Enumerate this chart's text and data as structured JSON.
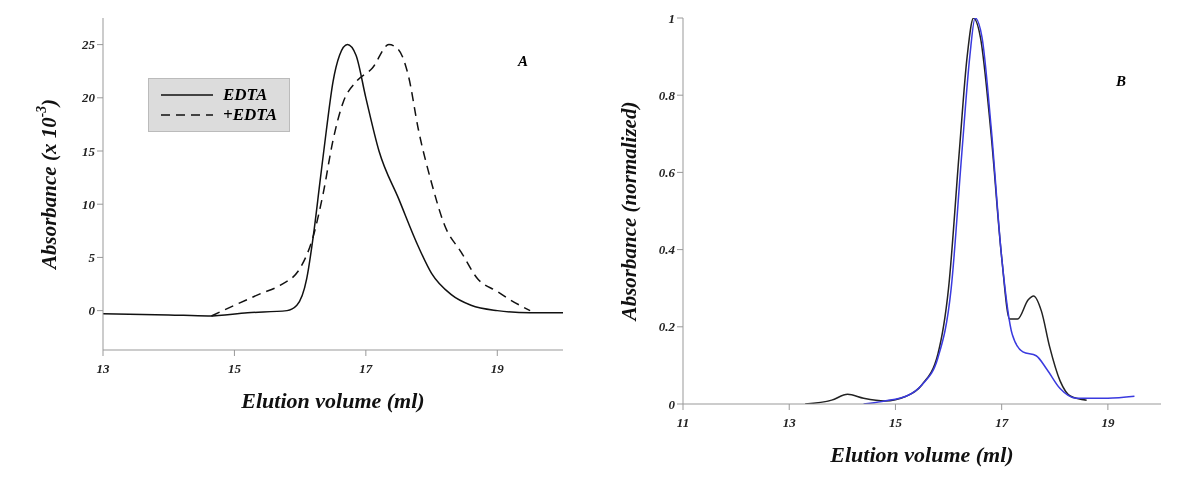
{
  "chart_data": [
    {
      "type": "line",
      "xlabel": "Elution volume (ml)",
      "ylabel": "Absorbance (x 10$^{-3}$)",
      "annotations": [
        "A"
      ],
      "xlim": [
        13,
        20
      ],
      "xticks": [
        13,
        15,
        17,
        19
      ],
      "ylim": [
        -3.7,
        27.5
      ],
      "yticks": [
        0,
        5,
        10,
        15,
        20,
        25
      ],
      "grid": false,
      "legend": "top left",
      "marker": "none",
      "series": [
        {
          "name": "EDTA",
          "color": "#111111",
          "line_style": "solid",
          "x": [
            13,
            14,
            14.6,
            15.2,
            15.8,
            15.95,
            16.1,
            16.2,
            16.3,
            16.4,
            16.5,
            16.6,
            16.72,
            16.85,
            17,
            17.2,
            17.5,
            17.8,
            18,
            18.3,
            18.6,
            19,
            19.5,
            20
          ],
          "values": [
            -0.3,
            -0.4,
            -0.5,
            -0.2,
            0,
            0.5,
            3,
            7,
            12,
            17,
            21.5,
            24,
            25,
            24,
            20,
            15,
            10.5,
            6,
            3.5,
            1.5,
            0.5,
            0,
            -0.2,
            -0.2
          ]
        },
        {
          "name": "+EDTA",
          "color": "#111111",
          "line_style": "dashed",
          "x": [
            14.65,
            15,
            15.4,
            15.7,
            16,
            16.2,
            16.35,
            16.5,
            16.65,
            16.85,
            17.1,
            17.35,
            17.5,
            17.65,
            17.8,
            18,
            18.2,
            18.45,
            18.7,
            19,
            19.2,
            19.5
          ],
          "values": [
            -0.5,
            0.5,
            1.6,
            2.4,
            4,
            7,
            11,
            16,
            19.5,
            21.5,
            22.8,
            25,
            24.5,
            22,
            17,
            12,
            8,
            5.5,
            3,
            1.8,
            1,
            0
          ]
        }
      ]
    },
    {
      "type": "line",
      "xlabel": "Elution volume (ml)",
      "ylabel": "Absorbance (normalized)",
      "annotations": [
        "B"
      ],
      "xlim": [
        11,
        20
      ],
      "xticks": [
        11,
        13,
        15,
        17,
        19
      ],
      "ylim": [
        0,
        1
      ],
      "yticks": [
        0,
        0.2,
        0.4,
        0.6,
        0.8,
        1
      ],
      "grid": false,
      "legend": false,
      "marker": "none",
      "line_style": "solid",
      "series": [
        {
          "color": "#222222",
          "x": [
            13.3,
            13.8,
            14.1,
            14.4,
            14.8,
            15.2,
            15.5,
            15.8,
            16,
            16.2,
            16.35,
            16.47,
            16.6,
            16.8,
            17,
            17.15,
            17.3,
            17.5,
            17.6,
            17.75,
            17.9,
            18.1,
            18.3,
            18.6
          ],
          "values": [
            0,
            0.01,
            0.025,
            0.015,
            0.008,
            0.02,
            0.05,
            0.13,
            0.3,
            0.65,
            0.9,
            1,
            0.95,
            0.7,
            0.38,
            0.22,
            0.22,
            0.27,
            0.28,
            0.24,
            0.15,
            0.06,
            0.02,
            0.01
          ]
        },
        {
          "color": "#3a3adf",
          "x": [
            14.4,
            14.8,
            15.2,
            15.5,
            15.8,
            16.05,
            16.25,
            16.4,
            16.5,
            16.63,
            16.8,
            17,
            17.2,
            17.4,
            17.65,
            17.85,
            18.1,
            18.4,
            19,
            19.5
          ],
          "values": [
            0,
            0.008,
            0.02,
            0.05,
            0.12,
            0.3,
            0.65,
            0.9,
            1,
            0.95,
            0.72,
            0.38,
            0.18,
            0.135,
            0.125,
            0.09,
            0.04,
            0.015,
            0.015,
            0.02
          ]
        }
      ]
    }
  ]
}
